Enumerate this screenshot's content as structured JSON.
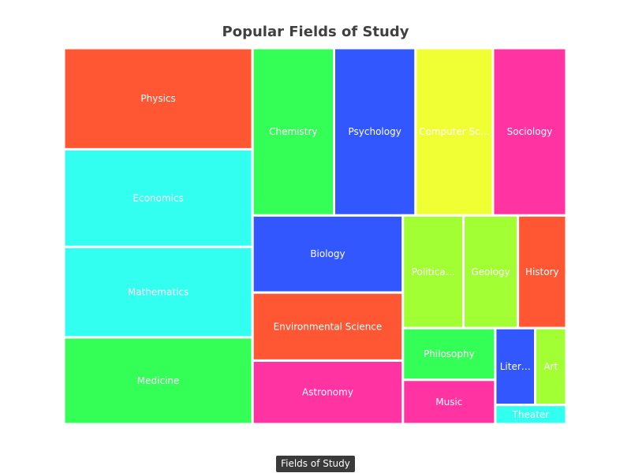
{
  "chart_data": {
    "type": "treemap",
    "title": "Popular Fields of Study",
    "legend": {
      "label": "Fields of Study",
      "placement": "bottom-center"
    },
    "items": [
      {
        "name": "Physics",
        "value": 28,
        "color": "#ff5733"
      },
      {
        "name": "Economics",
        "value": 27,
        "color": "#33fff0"
      },
      {
        "name": "Mathematics",
        "value": 25,
        "color": "#33fff0"
      },
      {
        "name": "Medicine",
        "value": 24,
        "color": "#33ff57"
      },
      {
        "name": "Chemistry",
        "value": 20,
        "color": "#33ff57"
      },
      {
        "name": "Psychology",
        "value": 20,
        "color": "#3357ff"
      },
      {
        "name": "Computer Science",
        "value": 19,
        "color": "#f0ff33"
      },
      {
        "name": "Sociology",
        "value": 18,
        "color": "#ff33a1"
      },
      {
        "name": "Biology",
        "value": 17,
        "color": "#3357ff"
      },
      {
        "name": "Environmental Science",
        "value": 15,
        "color": "#ff5733"
      },
      {
        "name": "Astronomy",
        "value": 14,
        "color": "#ff33a1"
      },
      {
        "name": "Political Science",
        "value": 10,
        "color": "#a1ff33"
      },
      {
        "name": "Geology",
        "value": 9,
        "color": "#a1ff33"
      },
      {
        "name": "History",
        "value": 8,
        "color": "#ff5733"
      },
      {
        "name": "Philosophy",
        "value": 7,
        "color": "#33ff57"
      },
      {
        "name": "Music",
        "value": 6,
        "color": "#ff33a1"
      },
      {
        "name": "Literature",
        "value": 4.5,
        "color": "#3357ff"
      },
      {
        "name": "Art",
        "value": 3.5,
        "color": "#a1ff33"
      },
      {
        "name": "Theater",
        "value": 2,
        "color": "#33fff0"
      }
    ]
  }
}
